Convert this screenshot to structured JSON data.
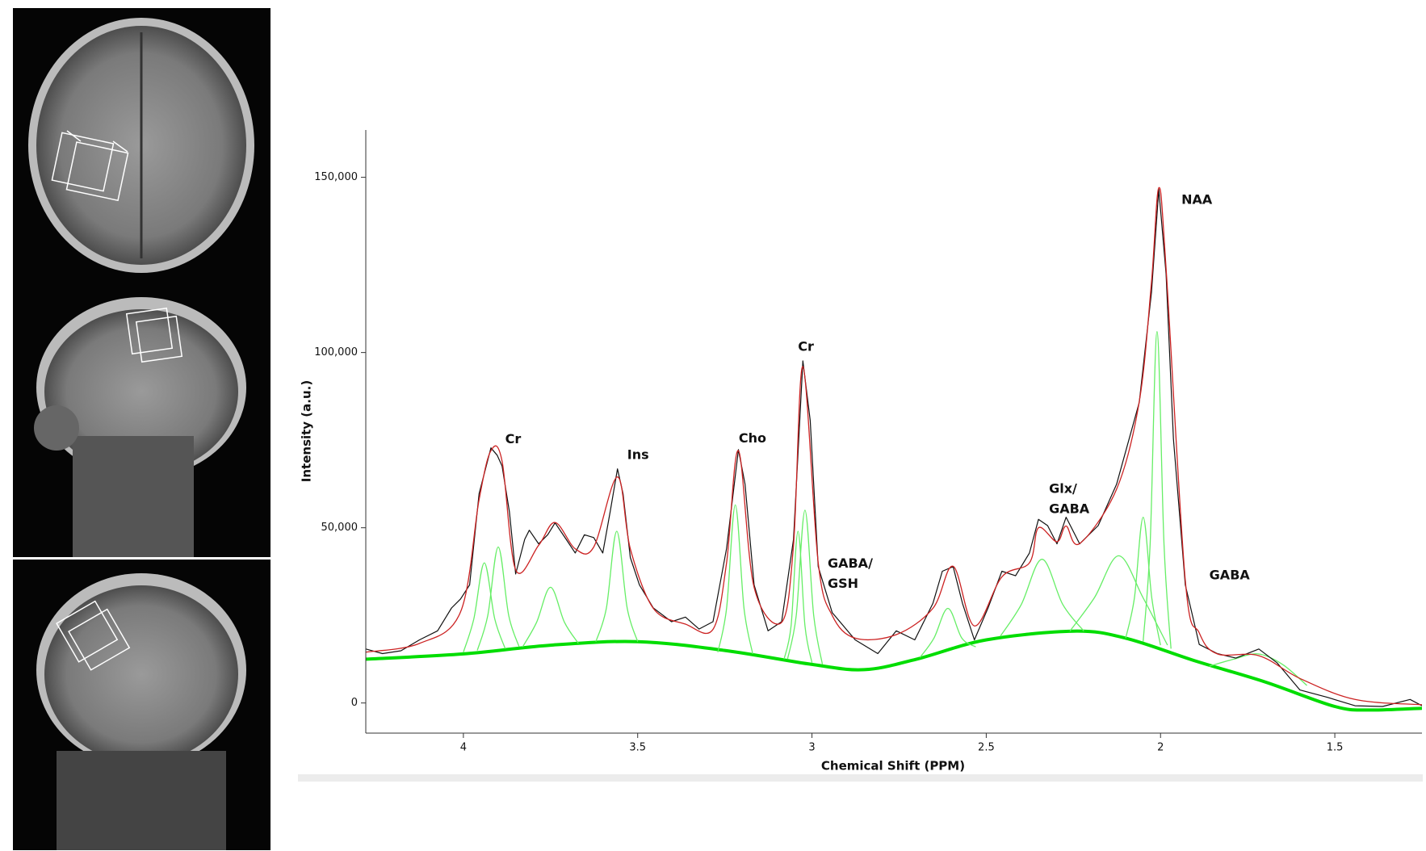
{
  "chart_data": {
    "type": "line",
    "xlabel": "Chemical Shift (PPM)",
    "ylabel": "Intensity (a.u.)",
    "xlim": [
      4.28,
      1.25
    ],
    "ylim": [
      -8600,
      163500
    ],
    "xticks": [
      4,
      3.5,
      3,
      2.5,
      2,
      1.5
    ],
    "yticks": [
      0,
      {
        "value": 50000,
        "label": "50,000"
      },
      {
        "value": 100000,
        "label": "100,000"
      },
      {
        "value": 150000,
        "label": "150,000"
      }
    ],
    "annotations": [
      {
        "lines": [
          "Cr"
        ],
        "x": 3.88,
        "y": 75100
      },
      {
        "lines": [
          "Ins"
        ],
        "x": 3.53,
        "y": 70700
      },
      {
        "lines": [
          "Cho"
        ],
        "x": 3.21,
        "y": 75400
      },
      {
        "lines": [
          "Cr"
        ],
        "x": 3.04,
        "y": 101500
      },
      {
        "lines": [
          "GABA/",
          "GSH"
        ],
        "x": 2.955,
        "y": 39700
      },
      {
        "lines": [
          "Glx/",
          "GABA"
        ],
        "x": 2.32,
        "y": 61000
      },
      {
        "lines": [
          "NAA"
        ],
        "x": 1.94,
        "y": 143500
      },
      {
        "lines": [
          "GABA"
        ],
        "x": 1.86,
        "y": 36300
      }
    ],
    "series": [
      {
        "color": "#00dd00",
        "width": 4,
        "smooth": true,
        "x": [
          4.28,
          4.0,
          3.75,
          3.5,
          3.25,
          3.0,
          2.85,
          2.7,
          2.5,
          2.25,
          2.1,
          1.9,
          1.7,
          1.5,
          1.4,
          1.25
        ],
        "values": [
          12500,
          14000,
          16500,
          17500,
          15000,
          11000,
          9500,
          12500,
          18000,
          20500,
          18500,
          12000,
          6000,
          -1000,
          -2000,
          -1500
        ]
      },
      {
        "color": "#66ee66",
        "width": 1.3,
        "smooth": true,
        "x": [
          4.0,
          3.97,
          3.94,
          3.91,
          3.88
        ],
        "values": [
          14500,
          24000,
          40000,
          24000,
          15500
        ]
      },
      {
        "color": "#66ee66",
        "width": 1.3,
        "smooth": true,
        "x": [
          3.96,
          3.93,
          3.9,
          3.87,
          3.84
        ],
        "values": [
          15000,
          25000,
          44500,
          25000,
          16000
        ]
      },
      {
        "color": "#66ee66",
        "width": 1.3,
        "smooth": true,
        "x": [
          3.83,
          3.79,
          3.75,
          3.71,
          3.67
        ],
        "values": [
          16000,
          23000,
          33000,
          23000,
          17000
        ]
      },
      {
        "color": "#66ee66",
        "width": 1.3,
        "smooth": true,
        "x": [
          3.62,
          3.59,
          3.56,
          3.53,
          3.5
        ],
        "values": [
          17500,
          27000,
          49000,
          27000,
          17500
        ]
      },
      {
        "color": "#66ee66",
        "width": 1.3,
        "smooth": true,
        "x": [
          3.27,
          3.245,
          3.22,
          3.195,
          3.17
        ],
        "values": [
          14500,
          27000,
          56500,
          27000,
          14000
        ]
      },
      {
        "color": "#66ee66",
        "width": 1.3,
        "smooth": true,
        "x": [
          3.08,
          3.06,
          3.04,
          3.02,
          3.0
        ],
        "values": [
          12500,
          22000,
          49000,
          22000,
          11500
        ]
      },
      {
        "color": "#66ee66",
        "width": 1.3,
        "smooth": true,
        "x": [
          3.07,
          3.045,
          3.02,
          2.995,
          2.97
        ],
        "values": [
          12500,
          25000,
          55000,
          25000,
          11000
        ]
      },
      {
        "color": "#66ee66",
        "width": 1.3,
        "smooth": true,
        "x": [
          2.69,
          2.65,
          2.61,
          2.57,
          2.53
        ],
        "values": [
          13000,
          18500,
          27000,
          18500,
          16000
        ]
      },
      {
        "color": "#66ee66",
        "width": 1.3,
        "smooth": true,
        "x": [
          2.46,
          2.4,
          2.34,
          2.28,
          2.22
        ],
        "values": [
          19000,
          28000,
          41000,
          28000,
          20500
        ]
      },
      {
        "color": "#66ee66",
        "width": 1.3,
        "smooth": true,
        "x": [
          2.26,
          2.19,
          2.12,
          2.05,
          1.98
        ],
        "values": [
          20500,
          30000,
          42000,
          30000,
          16500
        ]
      },
      {
        "color": "#66ee66",
        "width": 1.3,
        "smooth": true,
        "x": [
          2.1,
          2.075,
          2.05,
          2.025,
          2.0
        ],
        "values": [
          18500,
          30000,
          53000,
          30000,
          16500
        ]
      },
      {
        "color": "#66ee66",
        "width": 1.3,
        "smooth": true,
        "x": [
          2.05,
          2.03,
          2.01,
          1.99,
          1.97
        ],
        "values": [
          17500,
          45000,
          106000,
          45000,
          15500
        ]
      },
      {
        "color": "#66ee66",
        "width": 1.3,
        "smooth": true,
        "x": [
          1.86,
          1.79,
          1.72,
          1.65,
          1.58
        ],
        "values": [
          10500,
          12500,
          14000,
          11000,
          5000
        ]
      },
      {
        "color": "#111111",
        "width": 1.2,
        "smooth": false,
        "x": [
          4.28,
          4.232,
          4.179,
          4.126,
          4.074,
          4.034,
          4.008,
          3.982,
          3.955,
          3.921,
          3.903,
          3.889,
          3.868,
          3.85,
          3.824,
          3.811,
          3.784,
          3.758,
          3.737,
          3.705,
          3.679,
          3.653,
          3.626,
          3.6,
          3.579,
          3.558,
          3.542,
          3.521,
          3.495,
          3.455,
          3.403,
          3.363,
          3.324,
          3.284,
          3.245,
          3.211,
          3.192,
          3.166,
          3.126,
          3.087,
          3.053,
          3.026,
          3.005,
          2.982,
          2.942,
          2.876,
          2.811,
          2.758,
          2.705,
          2.653,
          2.626,
          2.595,
          2.568,
          2.534,
          2.495,
          2.455,
          2.416,
          2.376,
          2.35,
          2.324,
          2.297,
          2.271,
          2.232,
          2.179,
          2.126,
          2.061,
          2.026,
          2.005,
          1.984,
          1.963,
          1.929,
          1.889,
          1.837,
          1.784,
          1.718,
          1.666,
          1.6,
          1.521,
          1.442,
          1.363,
          1.284,
          1.25
        ],
        "values": [
          15400,
          14100,
          14900,
          18000,
          20600,
          27100,
          29700,
          33700,
          59700,
          72800,
          70700,
          67600,
          54500,
          36800,
          46700,
          49300,
          45400,
          48000,
          51400,
          46700,
          42800,
          48000,
          47200,
          42800,
          54500,
          66800,
          59700,
          41500,
          33700,
          27100,
          23200,
          24500,
          21100,
          23200,
          44100,
          72300,
          62400,
          33700,
          20600,
          23200,
          46700,
          97600,
          80600,
          38900,
          25800,
          18000,
          14100,
          20600,
          18000,
          28400,
          37600,
          38900,
          28400,
          18000,
          27100,
          37600,
          36300,
          42800,
          52400,
          50600,
          45400,
          53000,
          45400,
          50600,
          62400,
          85800,
          117100,
          146600,
          122400,
          75400,
          33700,
          16700,
          14100,
          12800,
          15400,
          11500,
          3700,
          1600,
          -800,
          -1000,
          1000,
          -800
        ]
      },
      {
        "color": "#cc2222",
        "width": 1.3,
        "smooth": true,
        "x": [
          4.28,
          4.126,
          4.008,
          3.955,
          3.921,
          3.889,
          3.85,
          3.784,
          3.737,
          3.679,
          3.626,
          3.558,
          3.521,
          3.455,
          3.363,
          3.284,
          3.245,
          3.211,
          3.166,
          3.087,
          3.053,
          3.026,
          2.982,
          2.942,
          2.876,
          2.758,
          2.653,
          2.595,
          2.534,
          2.455,
          2.376,
          2.35,
          2.297,
          2.271,
          2.232,
          2.126,
          2.061,
          2.026,
          2.005,
          1.984,
          1.929,
          1.889,
          1.837,
          1.718,
          1.6,
          1.442,
          1.25
        ],
        "values": [
          14500,
          17000,
          26000,
          58000,
          72000,
          69000,
          38000,
          45000,
          51500,
          44000,
          44500,
          64500,
          44000,
          27000,
          22500,
          21000,
          40000,
          72000,
          33000,
          23000,
          45000,
          96000,
          40000,
          25000,
          18500,
          19500,
          27000,
          39000,
          22000,
          36000,
          40000,
          50000,
          46000,
          50500,
          45500,
          61000,
          86000,
          120000,
          147000,
          124000,
          35000,
          20000,
          14000,
          13500,
          7000,
          1000,
          -500
        ]
      }
    ]
  }
}
